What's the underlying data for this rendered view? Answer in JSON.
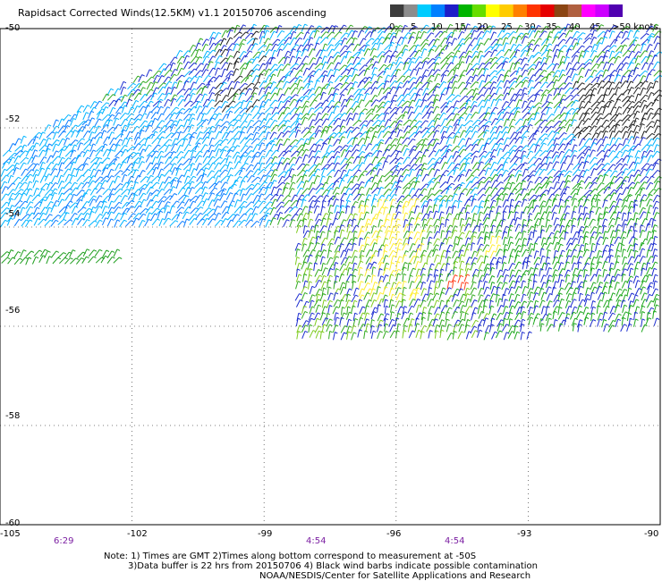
{
  "title": "Rapidsact Corrected Winds(12.5KM) v1.1 20150706 ascending",
  "colorbar": {
    "labels": [
      "0",
      "5",
      "10",
      "15",
      "20",
      "25",
      "30",
      "35",
      "40",
      "45",
      ">50 knots"
    ],
    "colors": [
      "#3c3c3c",
      "#8c8c8c",
      "#00ccff",
      "#0080ff",
      "#1e1ec8",
      "#00b400",
      "#66dd00",
      "#ffff00",
      "#ffcc00",
      "#ff8000",
      "#ff3300",
      "#e60000",
      "#8b4513",
      "#b06040",
      "#ff00ff",
      "#cc00ff",
      "#5000b0"
    ]
  },
  "map": {
    "lat_labels": [
      "-50",
      "-52",
      "-54",
      "-56",
      "-58",
      "-60"
    ],
    "lon_labels": [
      "-105",
      "-102",
      "-99",
      "-96",
      "-93",
      "-90"
    ],
    "time_labels": [
      "6:29",
      "4:54",
      "4:54"
    ],
    "lat_range": [
      -60,
      -50
    ],
    "lon_range": [
      -105,
      -90
    ],
    "grid": "dotted"
  },
  "notes": {
    "line1": "Note: 1) Times are GMT 2)Times along bottom correspond to measurement at -50S",
    "line2": "3)Data buffer is 22 hrs from 20150706 4) Black wind barbs indicate possible contamination",
    "line3": "NOAA/NESDIS/Center for Satellite Applications and Research"
  }
}
